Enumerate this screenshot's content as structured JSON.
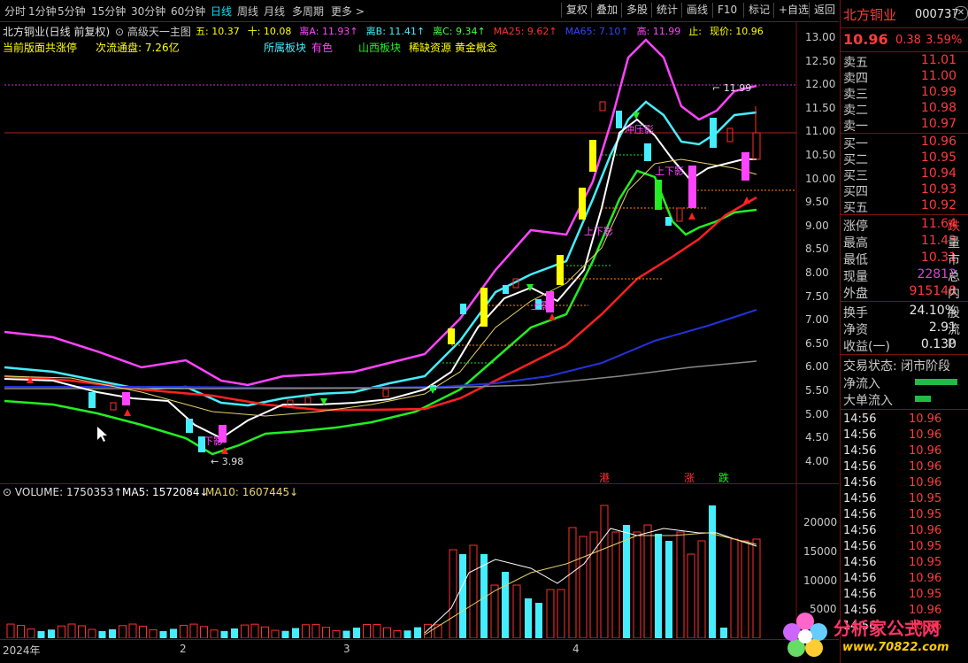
{
  "toolbar": {
    "periods": [
      "分时",
      "1分钟",
      "5分钟",
      "15分钟",
      "30分钟",
      "60分钟",
      "日线",
      "周线",
      "月线",
      "多周期",
      "更多 >"
    ],
    "active_period": "日线",
    "buttons": [
      "复权",
      "叠加",
      "多股",
      "统计",
      "画线",
      "F10",
      "标记",
      "+自选",
      "返回"
    ]
  },
  "chart": {
    "title": "北方铜业(日线 前复权)",
    "indicator_name": "高级天一主图",
    "line_values": [
      {
        "label": "五: 10.37",
        "color": "#ffff00"
      },
      {
        "label": "十: 10.08",
        "color": "#ffff00"
      },
      {
        "label": "离A: 11.93↑",
        "color": "#ff44ff"
      },
      {
        "label": "离B: 11.41↑",
        "color": "#44eeff"
      },
      {
        "label": "离C: 9.34↑",
        "color": "#44ff44"
      },
      {
        "label": "MA25: 9.62↑",
        "color": "#ff3030"
      },
      {
        "label": "MA65: 7.10↑",
        "color": "#3344ff"
      },
      {
        "label": "高: 11.99",
        "color": "#ff44ff"
      },
      {
        "label": "止:",
        "color": "#ffff00"
      },
      {
        "label": "现价: 10.96",
        "color": "#ffff00"
      }
    ],
    "info_line_1": "当前版面共涨停",
    "info_line_2": "次流通盘: 7.26亿",
    "sector_label": "所属板块",
    "sector_value": "有色",
    "region_label": "山西板块",
    "concepts": "稀缺资源 黄金概念",
    "price_axis": [
      "13.00",
      "12.50",
      "12.00",
      "11.50",
      "11.00",
      "10.50",
      "10.00",
      "9.50",
      "9.00",
      "8.50",
      "8.00",
      "7.50",
      "7.00",
      "6.50",
      "6.00",
      "5.50",
      "5.00",
      "4.50",
      "4.00"
    ],
    "high_marker": "11.99",
    "low_marker": "3.98",
    "annotations": [
      "冲压影",
      "上下影",
      "上下影",
      "上影",
      "下影"
    ],
    "event_labels": [
      "港",
      "涨",
      "跌"
    ]
  },
  "volume": {
    "label": "VOLUME: 1750353↑",
    "ma5": "MA5: 1572084↓",
    "ma10": "MA10: 1607445↓",
    "axis": [
      "20000",
      "15000",
      "10000",
      "5000"
    ]
  },
  "date_axis": [
    "2024年",
    "2",
    "3",
    "4"
  ],
  "quote": {
    "name": "北方铜业",
    "code": "000737",
    "price": "10.96",
    "change": "0.38",
    "pct": "3.59%",
    "asks": [
      {
        "label": "卖五",
        "price": "11.01"
      },
      {
        "label": "卖四",
        "price": "11.00"
      },
      {
        "label": "卖三",
        "price": "10.99"
      },
      {
        "label": "卖二",
        "price": "10.98"
      },
      {
        "label": "卖一",
        "price": "10.97"
      }
    ],
    "bids": [
      {
        "label": "买一",
        "price": "10.96"
      },
      {
        "label": "买二",
        "price": "10.95"
      },
      {
        "label": "买三",
        "price": "10.94"
      },
      {
        "label": "买四",
        "price": "10.93"
      },
      {
        "label": "买五",
        "price": "10.92"
      }
    ],
    "stats": [
      {
        "label": "涨停",
        "value": "11.64",
        "extra": "跌",
        "color": "#ff3b3b"
      },
      {
        "label": "最高",
        "value": "11.43",
        "extra": "量",
        "color": "#ff3b3b"
      },
      {
        "label": "最低",
        "value": "10.31",
        "extra": "市",
        "color": "#ff3b3b"
      },
      {
        "label": "现量",
        "value": "22812",
        "extra": "总",
        "color": "#e040e0"
      },
      {
        "label": "外盘",
        "value": "915148",
        "extra": "内",
        "color": "#ff3b3b"
      }
    ],
    "stats2": [
      {
        "label": "换手",
        "value": "24.10%",
        "extra": "股"
      },
      {
        "label": "净资",
        "value": "2.91",
        "extra": "流"
      },
      {
        "label": "收益(一)",
        "value": "0.130",
        "extra": "P"
      }
    ],
    "trade_status": "交易状态: 闭市阶段",
    "net_inflow": "净流入",
    "big_inflow": "大单流入",
    "ticks": [
      "14:56",
      "14:56",
      "14:56",
      "14:56",
      "14:56",
      "14:56",
      "14:56",
      "14:56",
      "14:56",
      "14:56",
      "14:56",
      "14:56",
      "14:56",
      "14:56"
    ],
    "tick_prices": [
      "10.96",
      "10.96",
      "10.96",
      "10.96",
      "10.96",
      "10.95",
      "10.95",
      "10.96",
      "10.95",
      "10.95",
      "10.96",
      "10.95",
      "10.96",
      "10.96"
    ]
  },
  "watermark": {
    "text": "分析家公式网",
    "url": "www.70822.com"
  }
}
